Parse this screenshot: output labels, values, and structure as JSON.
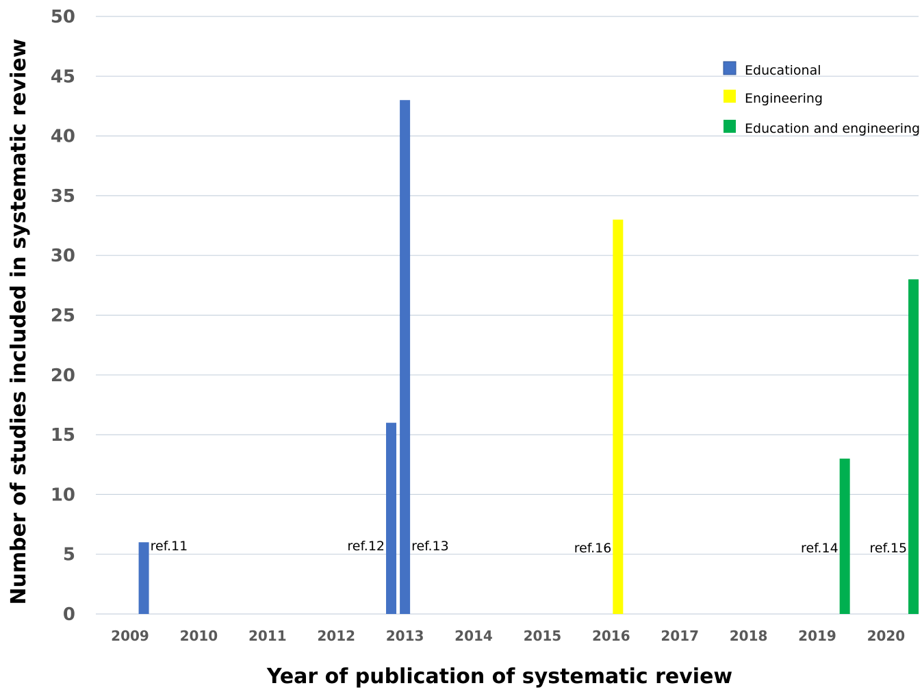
{
  "chart_data": {
    "type": "bar",
    "title": "",
    "xlabel": "Year of publication of systematic review",
    "ylabel": "Number of studies included in systematic review",
    "ylim": [
      0,
      50
    ],
    "yticks": [
      0,
      5,
      10,
      15,
      20,
      25,
      30,
      35,
      40,
      45,
      50
    ],
    "categories": [
      "2009",
      "2010",
      "2011",
      "2012",
      "2013",
      "2014",
      "2015",
      "2016",
      "2017",
      "2018",
      "2019",
      "2020"
    ],
    "grid": true,
    "legend_position": "top-right",
    "legend": [
      {
        "name": "Educational",
        "color": "#4472c4"
      },
      {
        "name": "Engineering",
        "color": "#ffff00"
      },
      {
        "name": "Education and engineering",
        "color": "#00b050"
      }
    ],
    "bars": [
      {
        "label": "ref.11",
        "year": 2009.2,
        "value": 6,
        "series": "Educational"
      },
      {
        "label": "ref.12",
        "year": 2012.8,
        "value": 16,
        "series": "Educational"
      },
      {
        "label": "ref.13",
        "year": 2013.0,
        "value": 43,
        "series": "Educational"
      },
      {
        "label": "ref.16",
        "year": 2016.1,
        "value": 33,
        "series": "Engineering"
      },
      {
        "label": "ref.14",
        "year": 2019.4,
        "value": 13,
        "series": "Education and engineering"
      },
      {
        "label": "ref.15",
        "year": 2020.4,
        "value": 28,
        "series": "Education and engineering"
      }
    ]
  }
}
